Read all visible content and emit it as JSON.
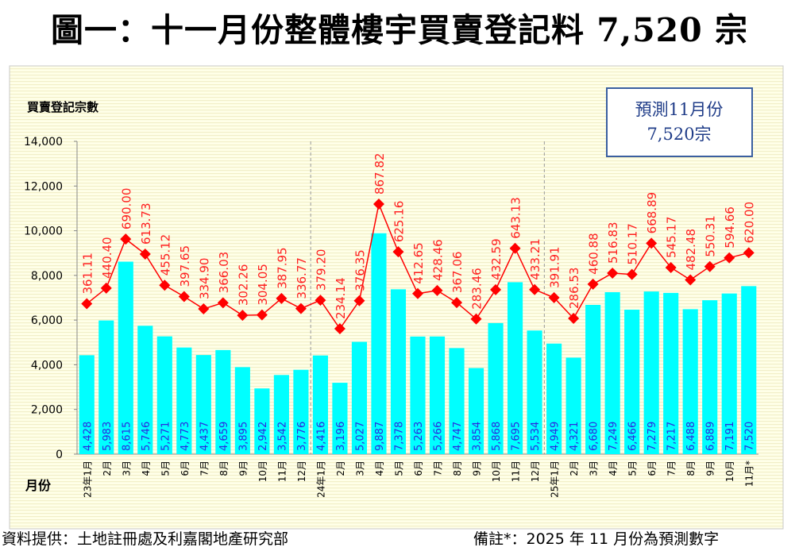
{
  "title": "圖一：十一月份整體樓宇買賣登記料 7,520 宗",
  "footer": {
    "source": "資料提供：土地註冊處及利嘉閣地產研究部",
    "note": "備註*：2025 年 11 月份為預測數字"
  },
  "chart_data": {
    "type": "bar+line",
    "ylabel": "買賣登記宗數",
    "xlabel": "月份",
    "ylim": [
      0,
      14000
    ],
    "yticks": [
      "0",
      "2,000",
      "4,000",
      "6,000",
      "8,000",
      "10,000",
      "12,000",
      "14,000"
    ],
    "annotation": {
      "line1": "預測11月份",
      "line2": "7,520宗"
    },
    "categories": [
      "23年1月",
      "2月",
      "3月",
      "4月",
      "5月",
      "6月",
      "7月",
      "8月",
      "9月",
      "10月",
      "11月",
      "12月",
      "24年1月",
      "2月",
      "3月",
      "4月",
      "5月",
      "6月",
      "7月",
      "8月",
      "9月",
      "10月",
      "11月",
      "12月",
      "25年1月",
      "2月",
      "3月",
      "4月",
      "5月",
      "6月",
      "7月",
      "8月",
      "9月",
      "10月",
      "11月*"
    ],
    "series": [
      {
        "type": "bar",
        "color": "#00FFFF",
        "values": [
          4428,
          5983,
          8615,
          5746,
          5271,
          4773,
          4437,
          4659,
          3895,
          2942,
          3542,
          3776,
          4416,
          3196,
          5027,
          9887,
          7378,
          5263,
          5266,
          4747,
          3854,
          5868,
          7695,
          5534,
          4949,
          4321,
          6680,
          7249,
          6466,
          7279,
          7217,
          6488,
          6889,
          7191,
          7520
        ],
        "labels": [
          "4,428",
          "5,983",
          "8,615",
          "5,746",
          "5,271",
          "4,773",
          "4,437",
          "4,659",
          "3,895",
          "2,942",
          "3,542",
          "3,776",
          "4,416",
          "3,196",
          "5,027",
          "9,887",
          "7,378",
          "5,263",
          "5,266",
          "4,747",
          "3,854",
          "5,868",
          "7,695",
          "5,534",
          "4,949",
          "4,321",
          "6,680",
          "7,249",
          "6,466",
          "7,279",
          "7,217",
          "6,488",
          "6,889",
          "7,191",
          "7,520"
        ]
      },
      {
        "type": "line",
        "color": "#FF0000",
        "marker": "diamond",
        "values": [
          361.11,
          440.4,
          690.0,
          613.73,
          455.12,
          397.65,
          334.9,
          366.03,
          302.26,
          304.05,
          387.95,
          336.77,
          379.2,
          234.14,
          376.35,
          867.82,
          625.16,
          412.65,
          428.46,
          367.06,
          283.46,
          432.59,
          643.13,
          433.21,
          391.91,
          286.53,
          460.88,
          516.83,
          510.17,
          668.89,
          545.17,
          482.48,
          550.31,
          594.66,
          620.0
        ],
        "labels": [
          "361.11",
          "440.40",
          "690.00",
          "613.73",
          "455.12",
          "397.65",
          "334.90",
          "366.03",
          "302.26",
          "304.05",
          "387.95",
          "336.77",
          "379.20",
          "234.14",
          "376.35",
          "867.82",
          "625.16",
          "412.65",
          "428.46",
          "367.06",
          "283.46",
          "432.59",
          "643.13",
          "433.21",
          "391.91",
          "286.53",
          "460.88",
          "516.83",
          "510.17",
          "668.89",
          "545.17",
          "482.48",
          "550.31",
          "594.66",
          "620.00"
        ]
      }
    ],
    "grid": false,
    "year_separators": true
  }
}
